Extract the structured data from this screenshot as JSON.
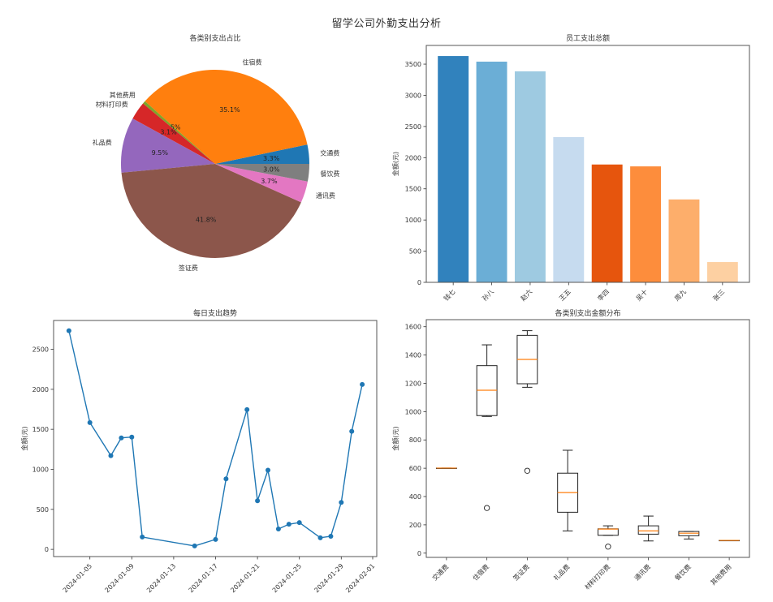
{
  "figure": {
    "suptitle": "留学公司外勤支出分析"
  },
  "chart_data": [
    {
      "type": "pie",
      "title": "各类别支出占比",
      "start_angle": 0,
      "direction": "counterclockwise",
      "labels": [
        "交通费",
        "住宿费",
        "其他费用",
        "材料打印费",
        "礼品费",
        "签证费",
        "通讯费",
        "餐饮费"
      ],
      "values": [
        3.3,
        35.1,
        0.5,
        3.1,
        9.5,
        41.8,
        3.7,
        3.0
      ],
      "autopct": [
        "3.3%",
        "35.1%",
        "0.5%",
        "3.1%",
        "9.5%",
        "41.8%",
        "3.7%",
        "3.0%"
      ],
      "colors": [
        "#1f77b4",
        "#ff7f0e",
        "#7fa52a",
        "#d62728",
        "#9467bd",
        "#8c564b",
        "#e377c2",
        "#7f7f7f"
      ]
    },
    {
      "type": "bar",
      "title": "员工支出总额",
      "xlabel": "",
      "ylabel": "金额(元)",
      "categories": [
        "钱七",
        "孙八",
        "赵六",
        "王五",
        "李四",
        "吴十",
        "周九",
        "张三"
      ],
      "values": [
        3630,
        3540,
        3385,
        2330,
        1890,
        1860,
        1330,
        325
      ],
      "colors": [
        "#3182bd",
        "#6baed6",
        "#9ecae1",
        "#c6dbef",
        "#e6550d",
        "#fd8d3c",
        "#fdae6b",
        "#fdd0a2"
      ],
      "ylim": [
        0,
        3800
      ],
      "yticks": [
        0,
        500,
        1000,
        1500,
        2000,
        2500,
        3000,
        3500
      ],
      "xtick_rotation": 45,
      "grid": false
    },
    {
      "type": "line",
      "title": "每日支出趋势",
      "xlabel": "",
      "ylabel": "金额(元)",
      "x": [
        "2024-01-03",
        "2024-01-05",
        "2024-01-07",
        "2024-01-08",
        "2024-01-09",
        "2024-01-10",
        "2024-01-15",
        "2024-01-17",
        "2024-01-18",
        "2024-01-20",
        "2024-01-21",
        "2024-01-22",
        "2024-01-23",
        "2024-01-24",
        "2024-01-25",
        "2024-01-27",
        "2024-01-28",
        "2024-01-29",
        "2024-01-30",
        "2024-01-31"
      ],
      "values": [
        2732,
        1584,
        1171,
        1393,
        1403,
        154,
        43,
        124,
        881,
        1746,
        607,
        990,
        255,
        314,
        335,
        145,
        164,
        587,
        1475,
        2060
      ],
      "color": "#1f77b4",
      "marker": "o",
      "xticks": [
        "2024-01-05",
        "2024-01-09",
        "2024-01-13",
        "2024-01-17",
        "2024-01-21",
        "2024-01-25",
        "2024-01-29",
        "2024-02-01"
      ],
      "yticks": [
        0,
        500,
        1000,
        1500,
        2000,
        2500
      ],
      "ylim": [
        -90,
        2860
      ],
      "xtick_rotation": 45,
      "grid": false
    },
    {
      "type": "box",
      "title": "各类别支出金额分布",
      "xlabel": "",
      "ylabel": "金额(元)",
      "categories": [
        "交通费",
        "住宿费",
        "签证费",
        "礼品费",
        "材料打印费",
        "通讯费",
        "餐饮费",
        "其他费用"
      ],
      "boxes": [
        {
          "whislo": 601,
          "q1": 601,
          "med": 601,
          "q3": 601,
          "whishi": 601,
          "fliers": []
        },
        {
          "whislo": 966,
          "q1": 972,
          "med": 1151,
          "q3": 1325,
          "whishi": 1472,
          "fliers": [
            319
          ]
        },
        {
          "whislo": 1172,
          "q1": 1197,
          "med": 1369,
          "q3": 1539,
          "whishi": 1572,
          "fliers": [
            582
          ]
        },
        {
          "whislo": 157,
          "q1": 289,
          "med": 428,
          "q3": 565,
          "whishi": 727,
          "fliers": []
        },
        {
          "whislo": 126,
          "q1": 126,
          "med": 170,
          "q3": 172,
          "whishi": 193,
          "fliers": [
            46
          ]
        },
        {
          "whislo": 86,
          "q1": 134,
          "med": 157,
          "q3": 193,
          "whishi": 262,
          "fliers": []
        },
        {
          "whislo": 100,
          "q1": 123,
          "med": 141,
          "q3": 153,
          "whishi": 153,
          "fliers": []
        },
        {
          "whislo": 90,
          "q1": 90,
          "med": 90,
          "q3": 90,
          "whishi": 90,
          "fliers": []
        }
      ],
      "median_color": "#ff7f0e",
      "yticks": [
        0,
        200,
        400,
        600,
        800,
        1000,
        1200,
        1400,
        1600
      ],
      "ylim": [
        -30,
        1650
      ],
      "xtick_rotation": 45,
      "grid": false
    }
  ]
}
